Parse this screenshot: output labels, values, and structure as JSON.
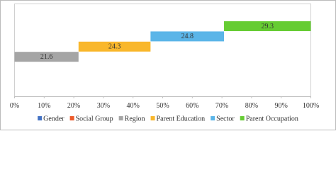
{
  "chart_data": {
    "type": "staircase-bar",
    "series": [
      {
        "name": "Gender",
        "color": "#4472c4",
        "value": 0
      },
      {
        "name": "Social Group",
        "color": "#ed5a2a",
        "value": 0
      },
      {
        "name": "Region",
        "color": "#a5a5a5",
        "value": 21.6
      },
      {
        "name": "Parent Education",
        "color": "#f9b72c",
        "value": 24.3
      },
      {
        "name": "Sector",
        "color": "#5bb5e8",
        "value": 24.8
      },
      {
        "name": "Parent Occupation",
        "color": "#66cc33",
        "value": 29.3
      }
    ],
    "xlim": [
      0,
      100
    ],
    "xticks": [
      {
        "value": 0,
        "label": "0%"
      },
      {
        "value": 10,
        "label": "10%"
      },
      {
        "value": 20,
        "label": "20%"
      },
      {
        "value": 30,
        "label": "30%"
      },
      {
        "value": 40,
        "label": "40%"
      },
      {
        "value": 50,
        "label": "50%"
      },
      {
        "value": 60,
        "label": "60%"
      },
      {
        "value": 70,
        "label": "70%"
      },
      {
        "value": 80,
        "label": "80%"
      },
      {
        "value": 90,
        "label": "90%"
      },
      {
        "value": 100,
        "label": "100%"
      }
    ],
    "legend": "bottom"
  }
}
